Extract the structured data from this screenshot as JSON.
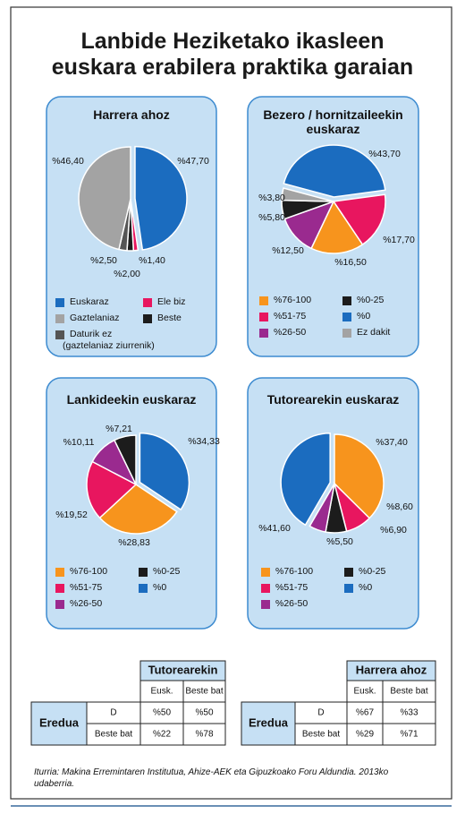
{
  "title": "Lanbide Heziketako ikasleen euskara erabilera praktika garaian",
  "chart_data": [
    {
      "type": "pie",
      "title": "Harrera ahoz",
      "categories": [
        "Euskaraz",
        "Ele biz",
        "Beste",
        "Daturik ez (gaztelaniaz ziurrenik)",
        "Gaztelaniaz"
      ],
      "values": [
        47.7,
        1.4,
        2.0,
        2.5,
        46.4
      ],
      "value_labels": [
        "%47,70",
        "%1,40",
        "%2,00",
        "%2,50",
        "%46,40"
      ],
      "colors": [
        "#1b6cbf",
        "#e8165f",
        "#1c1c1c",
        "#555555",
        "#a3a3a3"
      ]
    },
    {
      "type": "pie",
      "title": "Bezero / hornitzaileekin euskaraz",
      "categories": [
        "%0",
        "%51-75",
        "%76-100",
        "%26-50",
        "%0-25",
        "Ez dakit"
      ],
      "values": [
        43.7,
        17.7,
        16.5,
        12.5,
        5.8,
        3.8
      ],
      "value_labels": [
        "%43,70",
        "%17,70",
        "%16,50",
        "%12,50",
        "%5,80",
        "%3,80"
      ],
      "colors": [
        "#1b6cbf",
        "#e8165f",
        "#f7941d",
        "#9a2a8f",
        "#1c1c1c",
        "#a3a3a3"
      ]
    },
    {
      "type": "pie",
      "title": "Lankideekin euskaraz",
      "categories": [
        "%0",
        "%76-100",
        "%51-75",
        "%26-50",
        "%0-25"
      ],
      "values": [
        34.33,
        28.83,
        19.52,
        10.11,
        7.21
      ],
      "value_labels": [
        "%34,33",
        "%28,83",
        "%19,52",
        "%10,11",
        "%7,21"
      ],
      "colors": [
        "#1b6cbf",
        "#f7941d",
        "#e8165f",
        "#9a2a8f",
        "#1c1c1c"
      ]
    },
    {
      "type": "pie",
      "title": "Tutorearekin euskaraz",
      "categories": [
        "%76-100",
        "%51-75",
        "%0-25",
        "%26-50",
        "%0"
      ],
      "values": [
        37.4,
        8.6,
        6.9,
        5.5,
        41.6
      ],
      "value_labels": [
        "%37,40",
        "%8,60",
        "%6,90",
        "%5,50",
        "%41,60"
      ],
      "colors": [
        "#f7941d",
        "#e8165f",
        "#1c1c1c",
        "#9a2a8f",
        "#1b6cbf"
      ]
    }
  ],
  "tables": [
    {
      "title": "Tutorearekin",
      "columns": [
        "Eusk.",
        "Beste bat"
      ],
      "row_header": "Eredua",
      "rows": [
        {
          "label": "D",
          "cells": [
            "%50",
            "%50"
          ]
        },
        {
          "label": "Beste bat",
          "cells": [
            "%22",
            "%78"
          ]
        }
      ]
    },
    {
      "title": "Harrera ahoz",
      "columns": [
        "Eusk.",
        "Beste bat"
      ],
      "row_header": "Eredua",
      "rows": [
        {
          "label": "D",
          "cells": [
            "%67",
            "%33"
          ]
        },
        {
          "label": "Beste bat",
          "cells": [
            "%29",
            "%71"
          ]
        }
      ]
    }
  ],
  "source": "Iturria: Makina Erremintaren Institutua, Ahize-AEK eta Gipuzkoako Foru Aldundia. 2013ko udaberria."
}
